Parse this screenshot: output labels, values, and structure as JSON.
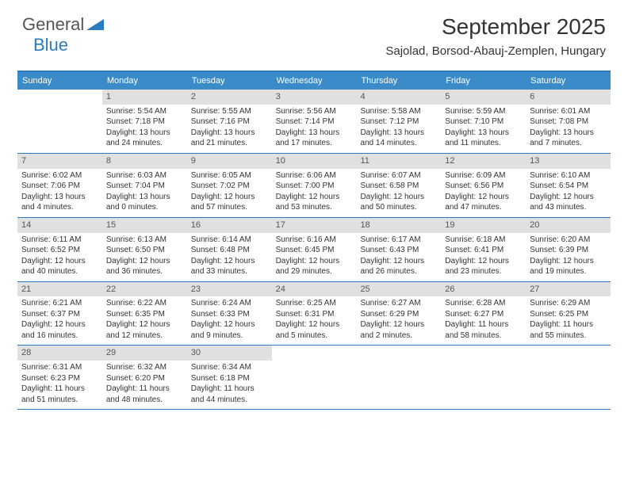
{
  "logo": {
    "text1": "General",
    "text2": "Blue"
  },
  "title": "September 2025",
  "location": "Sajolad, Borsod-Abauj-Zemplen, Hungary",
  "colors": {
    "header_bar": "#3b8bc9",
    "border": "#2b7bbf",
    "day_num_bg": "#e0e0e0",
    "text": "#333333",
    "white": "#ffffff"
  },
  "day_names": [
    "Sunday",
    "Monday",
    "Tuesday",
    "Wednesday",
    "Thursday",
    "Friday",
    "Saturday"
  ],
  "weeks": [
    [
      {
        "n": "",
        "sr": "",
        "ss": "",
        "dl": ""
      },
      {
        "n": "1",
        "sr": "Sunrise: 5:54 AM",
        "ss": "Sunset: 7:18 PM",
        "dl": "Daylight: 13 hours and 24 minutes."
      },
      {
        "n": "2",
        "sr": "Sunrise: 5:55 AM",
        "ss": "Sunset: 7:16 PM",
        "dl": "Daylight: 13 hours and 21 minutes."
      },
      {
        "n": "3",
        "sr": "Sunrise: 5:56 AM",
        "ss": "Sunset: 7:14 PM",
        "dl": "Daylight: 13 hours and 17 minutes."
      },
      {
        "n": "4",
        "sr": "Sunrise: 5:58 AM",
        "ss": "Sunset: 7:12 PM",
        "dl": "Daylight: 13 hours and 14 minutes."
      },
      {
        "n": "5",
        "sr": "Sunrise: 5:59 AM",
        "ss": "Sunset: 7:10 PM",
        "dl": "Daylight: 13 hours and 11 minutes."
      },
      {
        "n": "6",
        "sr": "Sunrise: 6:01 AM",
        "ss": "Sunset: 7:08 PM",
        "dl": "Daylight: 13 hours and 7 minutes."
      }
    ],
    [
      {
        "n": "7",
        "sr": "Sunrise: 6:02 AM",
        "ss": "Sunset: 7:06 PM",
        "dl": "Daylight: 13 hours and 4 minutes."
      },
      {
        "n": "8",
        "sr": "Sunrise: 6:03 AM",
        "ss": "Sunset: 7:04 PM",
        "dl": "Daylight: 13 hours and 0 minutes."
      },
      {
        "n": "9",
        "sr": "Sunrise: 6:05 AM",
        "ss": "Sunset: 7:02 PM",
        "dl": "Daylight: 12 hours and 57 minutes."
      },
      {
        "n": "10",
        "sr": "Sunrise: 6:06 AM",
        "ss": "Sunset: 7:00 PM",
        "dl": "Daylight: 12 hours and 53 minutes."
      },
      {
        "n": "11",
        "sr": "Sunrise: 6:07 AM",
        "ss": "Sunset: 6:58 PM",
        "dl": "Daylight: 12 hours and 50 minutes."
      },
      {
        "n": "12",
        "sr": "Sunrise: 6:09 AM",
        "ss": "Sunset: 6:56 PM",
        "dl": "Daylight: 12 hours and 47 minutes."
      },
      {
        "n": "13",
        "sr": "Sunrise: 6:10 AM",
        "ss": "Sunset: 6:54 PM",
        "dl": "Daylight: 12 hours and 43 minutes."
      }
    ],
    [
      {
        "n": "14",
        "sr": "Sunrise: 6:11 AM",
        "ss": "Sunset: 6:52 PM",
        "dl": "Daylight: 12 hours and 40 minutes."
      },
      {
        "n": "15",
        "sr": "Sunrise: 6:13 AM",
        "ss": "Sunset: 6:50 PM",
        "dl": "Daylight: 12 hours and 36 minutes."
      },
      {
        "n": "16",
        "sr": "Sunrise: 6:14 AM",
        "ss": "Sunset: 6:48 PM",
        "dl": "Daylight: 12 hours and 33 minutes."
      },
      {
        "n": "17",
        "sr": "Sunrise: 6:16 AM",
        "ss": "Sunset: 6:45 PM",
        "dl": "Daylight: 12 hours and 29 minutes."
      },
      {
        "n": "18",
        "sr": "Sunrise: 6:17 AM",
        "ss": "Sunset: 6:43 PM",
        "dl": "Daylight: 12 hours and 26 minutes."
      },
      {
        "n": "19",
        "sr": "Sunrise: 6:18 AM",
        "ss": "Sunset: 6:41 PM",
        "dl": "Daylight: 12 hours and 23 minutes."
      },
      {
        "n": "20",
        "sr": "Sunrise: 6:20 AM",
        "ss": "Sunset: 6:39 PM",
        "dl": "Daylight: 12 hours and 19 minutes."
      }
    ],
    [
      {
        "n": "21",
        "sr": "Sunrise: 6:21 AM",
        "ss": "Sunset: 6:37 PM",
        "dl": "Daylight: 12 hours and 16 minutes."
      },
      {
        "n": "22",
        "sr": "Sunrise: 6:22 AM",
        "ss": "Sunset: 6:35 PM",
        "dl": "Daylight: 12 hours and 12 minutes."
      },
      {
        "n": "23",
        "sr": "Sunrise: 6:24 AM",
        "ss": "Sunset: 6:33 PM",
        "dl": "Daylight: 12 hours and 9 minutes."
      },
      {
        "n": "24",
        "sr": "Sunrise: 6:25 AM",
        "ss": "Sunset: 6:31 PM",
        "dl": "Daylight: 12 hours and 5 minutes."
      },
      {
        "n": "25",
        "sr": "Sunrise: 6:27 AM",
        "ss": "Sunset: 6:29 PM",
        "dl": "Daylight: 12 hours and 2 minutes."
      },
      {
        "n": "26",
        "sr": "Sunrise: 6:28 AM",
        "ss": "Sunset: 6:27 PM",
        "dl": "Daylight: 11 hours and 58 minutes."
      },
      {
        "n": "27",
        "sr": "Sunrise: 6:29 AM",
        "ss": "Sunset: 6:25 PM",
        "dl": "Daylight: 11 hours and 55 minutes."
      }
    ],
    [
      {
        "n": "28",
        "sr": "Sunrise: 6:31 AM",
        "ss": "Sunset: 6:23 PM",
        "dl": "Daylight: 11 hours and 51 minutes."
      },
      {
        "n": "29",
        "sr": "Sunrise: 6:32 AM",
        "ss": "Sunset: 6:20 PM",
        "dl": "Daylight: 11 hours and 48 minutes."
      },
      {
        "n": "30",
        "sr": "Sunrise: 6:34 AM",
        "ss": "Sunset: 6:18 PM",
        "dl": "Daylight: 11 hours and 44 minutes."
      },
      {
        "n": "",
        "sr": "",
        "ss": "",
        "dl": ""
      },
      {
        "n": "",
        "sr": "",
        "ss": "",
        "dl": ""
      },
      {
        "n": "",
        "sr": "",
        "ss": "",
        "dl": ""
      },
      {
        "n": "",
        "sr": "",
        "ss": "",
        "dl": ""
      }
    ]
  ]
}
